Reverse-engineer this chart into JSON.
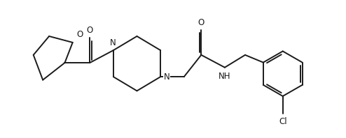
{
  "bg_color": "#ffffff",
  "line_color": "#1a1a1a",
  "line_width": 1.4,
  "font_size": 8.5,
  "figsize": [
    4.94,
    1.98
  ],
  "dpi": 100,
  "xlim": [
    -0.5,
    10.5
  ],
  "ylim": [
    0.0,
    4.2
  ]
}
